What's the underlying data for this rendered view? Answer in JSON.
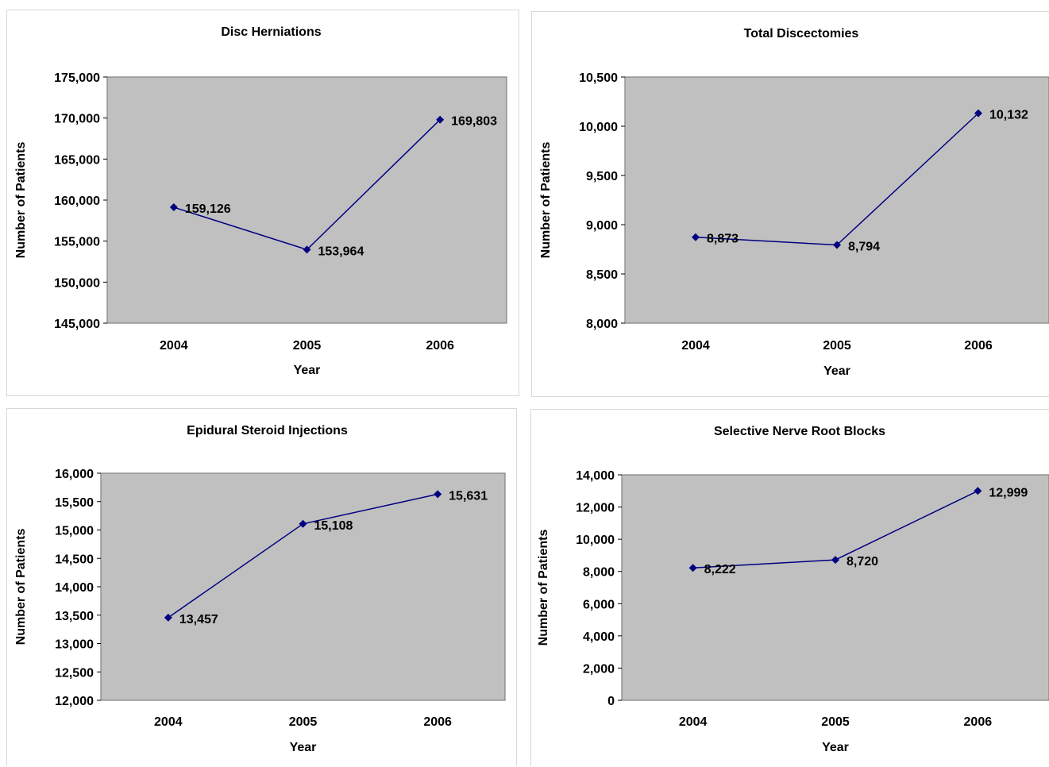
{
  "chart_data": [
    {
      "type": "line",
      "title": "Disc Herniations",
      "xlabel": "Year",
      "ylabel": "Number of Patients",
      "categories": [
        "2004",
        "2005",
        "2006"
      ],
      "series": [
        {
          "values": [
            159126,
            153964,
            169803
          ]
        }
      ],
      "data_labels": [
        "159,126",
        "153,964",
        "169,803"
      ],
      "ylim": [
        145000,
        175000
      ],
      "yticks": [
        145000,
        150000,
        155000,
        160000,
        165000,
        170000,
        175000
      ],
      "ytick_labels": [
        "145,000",
        "150,000",
        "155,000",
        "160,000",
        "165,000",
        "170,000",
        "175,000"
      ],
      "grid": false,
      "legend": "none",
      "line_color": "#000080",
      "plot_background": "#c0c0c0"
    },
    {
      "type": "line",
      "title": "Total Discectomies",
      "xlabel": "Year",
      "ylabel": "Number of Patients",
      "categories": [
        "2004",
        "2005",
        "2006"
      ],
      "series": [
        {
          "values": [
            8873,
            8794,
            10132
          ]
        }
      ],
      "data_labels": [
        "8,873",
        "8,794",
        "10,132"
      ],
      "ylim": [
        8000,
        10500
      ],
      "yticks": [
        8000,
        8500,
        9000,
        9500,
        10000,
        10500
      ],
      "ytick_labels": [
        "8,000",
        "8,500",
        "9,000",
        "9,500",
        "10,000",
        "10,500"
      ],
      "grid": false,
      "legend": "none",
      "line_color": "#000080",
      "plot_background": "#c0c0c0"
    },
    {
      "type": "line",
      "title": "Epidural Steroid Injections",
      "xlabel": "Year",
      "ylabel": "Number of Patients",
      "categories": [
        "2004",
        "2005",
        "2006"
      ],
      "series": [
        {
          "values": [
            13457,
            15108,
            15631
          ]
        }
      ],
      "data_labels": [
        "13,457",
        "15,108",
        "15,631"
      ],
      "ylim": [
        12000,
        16000
      ],
      "yticks": [
        12000,
        12500,
        13000,
        13500,
        14000,
        14500,
        15000,
        15500,
        16000
      ],
      "ytick_labels": [
        "12,000",
        "12,500",
        "13,000",
        "13,500",
        "14,000",
        "14,500",
        "15,000",
        "15,500",
        "16,000"
      ],
      "grid": false,
      "legend": "none",
      "line_color": "#000080",
      "plot_background": "#c0c0c0"
    },
    {
      "type": "line",
      "title": "Selective Nerve Root Blocks",
      "xlabel": "Year",
      "ylabel": "Number of Patients",
      "categories": [
        "2004",
        "2005",
        "2006"
      ],
      "series": [
        {
          "values": [
            8222,
            8720,
            12999
          ]
        }
      ],
      "data_labels": [
        "8,222",
        "8,720",
        "12,999"
      ],
      "ylim": [
        0,
        14000
      ],
      "yticks": [
        0,
        2000,
        4000,
        6000,
        8000,
        10000,
        12000,
        14000
      ],
      "ytick_labels": [
        "0",
        "2,000",
        "4,000",
        "6,000",
        "8,000",
        "10,000",
        "12,000",
        "14,000"
      ],
      "grid": false,
      "legend": "none",
      "line_color": "#000080",
      "plot_background": "#c0c0c0"
    }
  ]
}
